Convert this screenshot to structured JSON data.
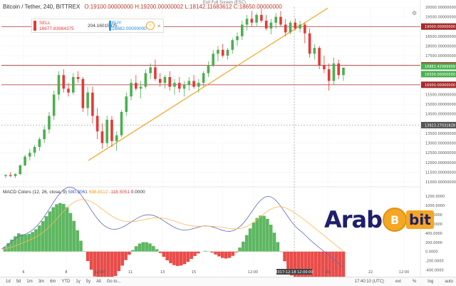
{
  "header": {
    "symbol": "Bitcoin / Tether, 240, BITTREX",
    "ohlc": "O:19100.00000000  H:19200.00000002  L:18142.11683612  C:18650.00000000",
    "exit_fullscreen": "Exit Full Screen (ESC)",
    "settings_icon": "gear-icon"
  },
  "trade_panel": {
    "sell_label": "SELL",
    "sell_price": "16677.83984375",
    "spread": "204.16015625",
    "buy_label": "BUY",
    "buy_price": "16882.00000000",
    "info_icon": "info-icon",
    "close_icon": "close-icon"
  },
  "price_axis": {
    "ticks": [
      "20000.00000000",
      "19500.00000000",
      "19000.00000000",
      "18500.00000000",
      "18000.00000000",
      "17500.00000000",
      "17000.00000000",
      "16500.00000000",
      "16000.00000000",
      "15500.00000000",
      "15000.00000000",
      "14500.00000000",
      "14000.00000000",
      "13500.00000000",
      "13000.00000000",
      "12500.00000000",
      "12000.00000000",
      "11500.00000000",
      "11000.00000000"
    ],
    "tag_19000": "19000.00000000",
    "tag_17000": "17000.00000000",
    "tag_16000": "16000.00000000",
    "tag_last": "16881.42999999",
    "tag_last2": "16500.00000000",
    "tag_crosshair": "13923.27031828"
  },
  "macd": {
    "title": "MACD Colors (12, 26, close, 9)",
    "val1": "580.3061",
    "val2": "698.8112",
    "val3": "-118.5051",
    "val4": "0.0000",
    "ticks": [
      "1200.0000",
      "1000.0000",
      "800.0000",
      "600.0000",
      "400.0000",
      "200.0000",
      "0.0000",
      "-200.0000",
      "-400.0000"
    ]
  },
  "time_axis": {
    "labels": [
      "6",
      "8",
      "12:00",
      "11",
      "13",
      "15",
      "12:00",
      "20",
      "22",
      "12:00"
    ],
    "crosshair_label": "2017-12-18 12:00:00"
  },
  "toolbar": {
    "ranges": [
      "1d",
      "5d",
      "1m",
      "3m",
      "6m",
      "YTD",
      "1y",
      "5y",
      "All",
      "Go to..."
    ],
    "time": "17:40:10 (UTC)",
    "opts": [
      "ext",
      "%",
      "log",
      "auto"
    ]
  },
  "logo": {
    "part1": "Arab",
    "coin": "B",
    "part2": "bit"
  },
  "chart_data": {
    "type": "candlestick",
    "title": "Bitcoin / Tether, 240, BITTREX",
    "ylim": [
      11000,
      20000
    ],
    "hlines": [
      19000,
      17000,
      16000
    ],
    "candles": [
      [
        11300,
        11400,
        11200,
        11350
      ],
      [
        11350,
        11500,
        11250,
        11300
      ],
      [
        11300,
        11450,
        11200,
        11400
      ],
      [
        11400,
        11900,
        11350,
        11850
      ],
      [
        11850,
        12400,
        11800,
        12300
      ],
      [
        12300,
        12700,
        12100,
        12500
      ],
      [
        12500,
        12900,
        12300,
        12800
      ],
      [
        12800,
        13300,
        12600,
        13200
      ],
      [
        13200,
        13900,
        13000,
        13700
      ],
      [
        13700,
        14600,
        13500,
        14400
      ],
      [
        14400,
        15700,
        14200,
        15500
      ],
      [
        15500,
        16700,
        15200,
        16500
      ],
      [
        16500,
        16800,
        15600,
        15800
      ],
      [
        15800,
        16100,
        15400,
        15600
      ],
      [
        15600,
        16600,
        15500,
        16400
      ],
      [
        16400,
        16700,
        16100,
        16300
      ],
      [
        16300,
        16400,
        14600,
        14800
      ],
      [
        14800,
        15900,
        14400,
        15600
      ],
      [
        15600,
        15900,
        14000,
        14400
      ],
      [
        14400,
        14800,
        13200,
        13600
      ],
      [
        13600,
        14000,
        12700,
        13000
      ],
      [
        13000,
        14400,
        12800,
        14200
      ],
      [
        14200,
        14400,
        12800,
        13100
      ],
      [
        13100,
        13600,
        12600,
        13400
      ],
      [
        13400,
        14700,
        13300,
        14600
      ],
      [
        14600,
        15600,
        14400,
        15400
      ],
      [
        15400,
        16300,
        15200,
        16100
      ],
      [
        16100,
        16500,
        15700,
        15800
      ],
      [
        15800,
        16200,
        15300,
        15900
      ],
      [
        15900,
        16800,
        15800,
        16600
      ],
      [
        16600,
        17100,
        16300,
        16900
      ],
      [
        16900,
        17300,
        16200,
        16300
      ],
      [
        16300,
        16600,
        15900,
        16100
      ],
      [
        16100,
        16500,
        15800,
        16400
      ],
      [
        16400,
        16700,
        15700,
        15900
      ],
      [
        15900,
        16300,
        15500,
        16100
      ],
      [
        16100,
        16400,
        15600,
        15800
      ],
      [
        15800,
        16200,
        15400,
        16000
      ],
      [
        16000,
        16400,
        15700,
        16200
      ],
      [
        16200,
        16500,
        15800,
        15900
      ],
      [
        15900,
        16300,
        15600,
        16100
      ],
      [
        16100,
        16700,
        15900,
        16600
      ],
      [
        16600,
        17200,
        16400,
        17000
      ],
      [
        17000,
        17800,
        16900,
        17600
      ],
      [
        17600,
        18000,
        17200,
        17800
      ],
      [
        17800,
        18100,
        17400,
        17500
      ],
      [
        17500,
        17900,
        17300,
        17800
      ],
      [
        17800,
        18400,
        17600,
        18300
      ],
      [
        18300,
        18700,
        18000,
        18500
      ],
      [
        18500,
        19300,
        18300,
        19100
      ],
      [
        19100,
        19600,
        18800,
        19400
      ],
      [
        19400,
        19800,
        19000,
        19200
      ],
      [
        19200,
        19700,
        19000,
        19600
      ],
      [
        19600,
        19900,
        19200,
        19300
      ],
      [
        19300,
        19600,
        18800,
        18900
      ],
      [
        18900,
        19400,
        18600,
        19200
      ],
      [
        19200,
        19700,
        18900,
        19500
      ],
      [
        19500,
        19800,
        19000,
        19100
      ],
      [
        19100,
        19400,
        18500,
        18700
      ],
      [
        18700,
        19300,
        18600,
        19200
      ],
      [
        19200,
        19400,
        18800,
        18900
      ],
      [
        18900,
        19300,
        18700,
        19100
      ],
      [
        19100,
        19200,
        18142,
        18650
      ],
      [
        18650,
        18900,
        17400,
        17600
      ],
      [
        17600,
        18100,
        17300,
        17900
      ],
      [
        17900,
        18000,
        16800,
        17000
      ],
      [
        17000,
        17500,
        16600,
        16800
      ],
      [
        16800,
        17100,
        15700,
        16200
      ],
      [
        16200,
        17400,
        16000,
        17100
      ],
      [
        17100,
        17300,
        16300,
        16500
      ],
      [
        16500,
        16900,
        16200,
        16881
      ]
    ],
    "trendlines": [
      {
        "from": [
          0.19,
          12100
        ],
        "to": [
          0.72,
          19600
        ]
      }
    ]
  }
}
